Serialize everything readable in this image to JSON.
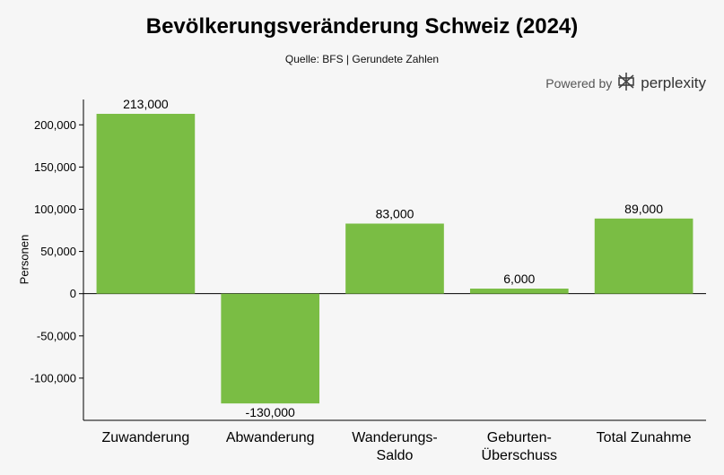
{
  "title": "Bevölkerungsveränderung Schweiz (2024)",
  "subtitle": "Quelle: BFS | Gerundete Zahlen",
  "powered_by": {
    "label": "Powered by",
    "brand": "perplexity",
    "icon": "perplexity-logo-icon"
  },
  "colors": {
    "bar": "#7abd44",
    "axis": "#000000",
    "background": "#f6f6f6"
  },
  "chart_data": {
    "type": "bar",
    "title": "Bevölkerungsveränderung Schweiz (2024)",
    "subtitle": "Quelle: BFS | Gerundete Zahlen",
    "xlabel": "",
    "ylabel": "Personen",
    "categories": [
      [
        "Zuwanderung"
      ],
      [
        "Abwanderung"
      ],
      [
        "Wanderungs-",
        "Saldo"
      ],
      [
        "Geburten-",
        "Überschuss"
      ],
      [
        "Total Zunahme"
      ]
    ],
    "values": [
      213000,
      -130000,
      83000,
      6000,
      89000
    ],
    "data_labels": [
      "213,000",
      "-130,000",
      "83,000",
      "6,000",
      "89,000"
    ],
    "ylim": [
      -150000,
      230000
    ],
    "yticks": [
      200000,
      150000,
      100000,
      50000,
      0,
      -50000,
      -100000
    ],
    "ytick_labels": [
      "200,000",
      "150,000",
      "100,000",
      "50,000",
      "0",
      "-50,000",
      "-100,000"
    ],
    "grid": false,
    "legend": "none"
  }
}
